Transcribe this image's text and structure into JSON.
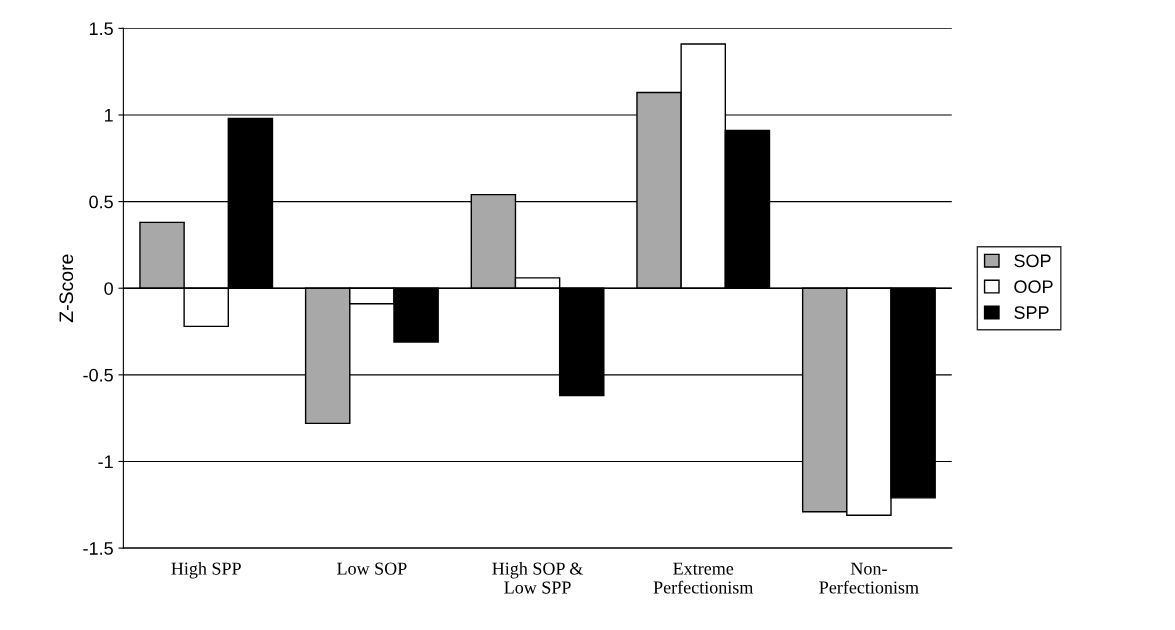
{
  "chart_data": {
    "type": "bar",
    "ylabel": "Z-Score",
    "categories": [
      "High SPP",
      "Low SOP",
      "High SOP &\nLow SPP",
      "Extreme\nPerfectionism",
      "Non-\nPerfectionism"
    ],
    "series": [
      {
        "name": "SOP",
        "color": "#a8a8a8",
        "values": [
          0.38,
          -0.78,
          0.54,
          1.13,
          -1.29
        ]
      },
      {
        "name": "OOP",
        "color": "#ffffff",
        "values": [
          -0.22,
          -0.09,
          0.06,
          1.41,
          -1.31
        ]
      },
      {
        "name": "SPP",
        "color": "#000000",
        "values": [
          0.98,
          -0.31,
          -0.62,
          0.91,
          -1.21
        ]
      }
    ],
    "ylim": [
      -1.5,
      1.5
    ],
    "yticks": [
      {
        "value": -1.5,
        "label": "-1.5"
      },
      {
        "value": -1,
        "label": "-1"
      },
      {
        "value": -0.5,
        "label": "-0.5"
      },
      0,
      0.5,
      1,
      1.5
    ],
    "grid": "y",
    "legend": "right"
  }
}
